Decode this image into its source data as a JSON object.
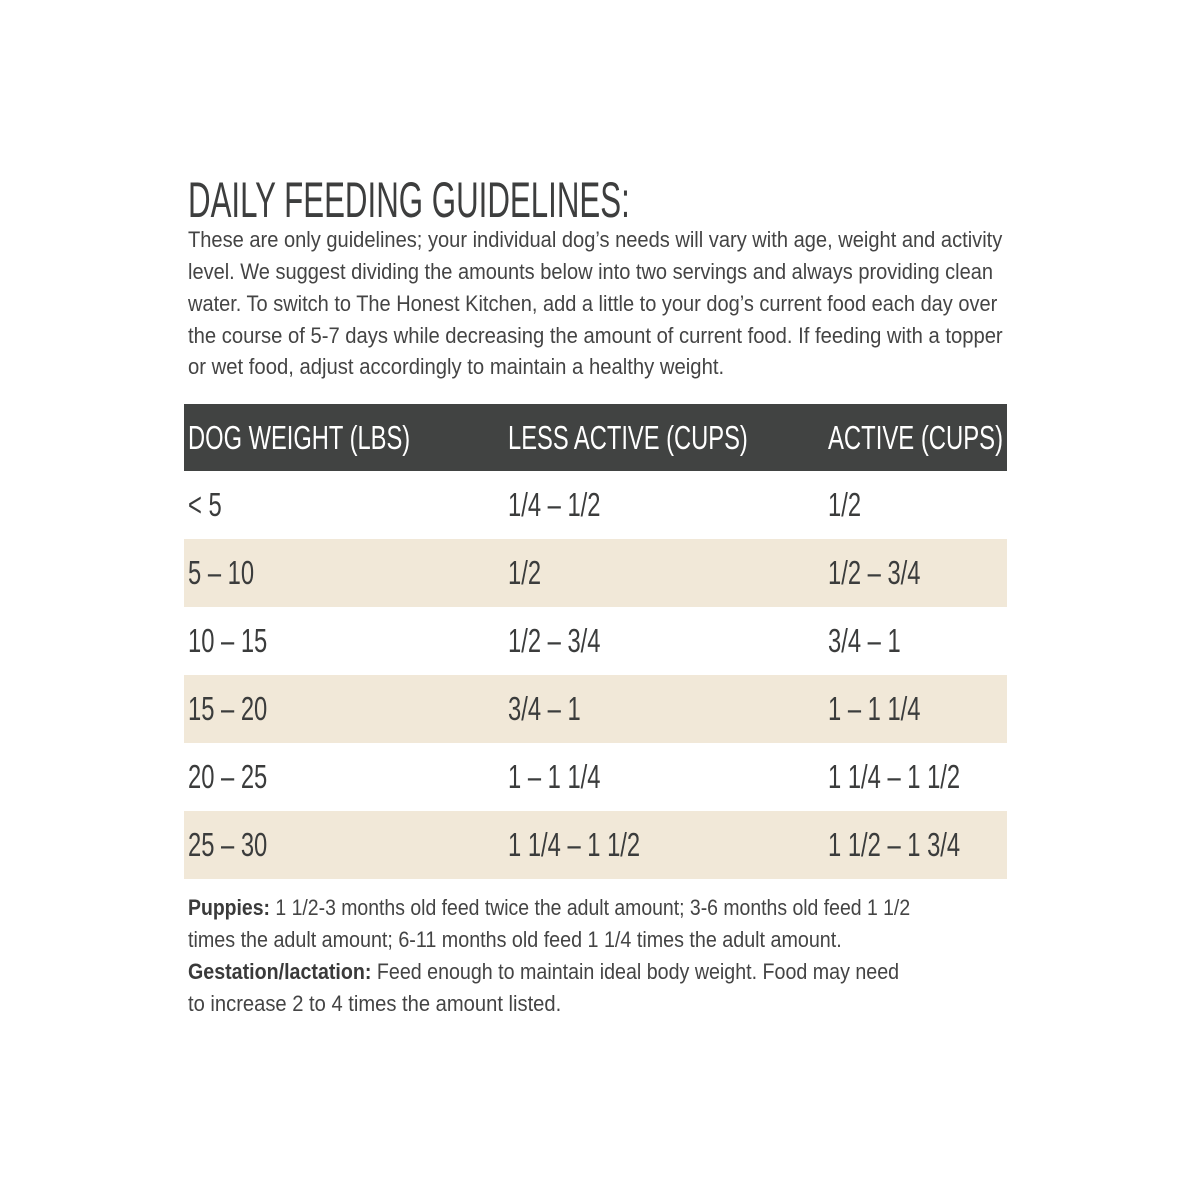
{
  "title": "DAILY FEEDING GUIDELINES:",
  "intro_lines": [
    "These are only guidelines; your individual dog’s needs will vary with age, weight and activity",
    "level. We suggest dividing the amounts below into two servings and always providing clean",
    "water. To switch to The Honest Kitchen, add a little to your dog’s current food each day over",
    "the course of 5-7 days while decreasing the amount of current food. If feeding with a topper",
    "or wet food, adjust accordingly to maintain a healthy weight."
  ],
  "table": {
    "headers": [
      "DOG WEIGHT (LBS)",
      "LESS ACTIVE (CUPS)",
      "ACTIVE (CUPS)"
    ],
    "rows": [
      [
        "< 5",
        "1/4 – 1/2",
        "1/2"
      ],
      [
        "5 – 10",
        "1/2",
        "1/2 – 3/4"
      ],
      [
        "10 – 15",
        "1/2 – 3/4",
        "3/4 – 1"
      ],
      [
        "15 – 20",
        "3/4 – 1",
        "1 – 1 1/4"
      ],
      [
        "20 – 25",
        "1 – 1 1/4",
        "1 1/4 – 1 1/2"
      ],
      [
        "25 – 30",
        "1 1/4 – 1 1/2",
        "1 1/2 – 1 3/4"
      ]
    ],
    "colors": {
      "header_bg": "#414342",
      "alt_row_bg": "#f1e8d8"
    }
  },
  "notes": {
    "puppies_label": "Puppies:",
    "puppies_line1": "1 1/2-3 months old feed twice the adult amount; 3-6 months old feed 1 1/2",
    "puppies_line2": "times the adult amount; 6-11 months old feed 1 1/4 times the adult amount.",
    "gestation_label": "Gestation/lactation:",
    "gestation_line1": "Feed enough to maintain ideal body weight. Food may need",
    "gestation_line2": "to increase 2 to 4 times the amount listed."
  }
}
